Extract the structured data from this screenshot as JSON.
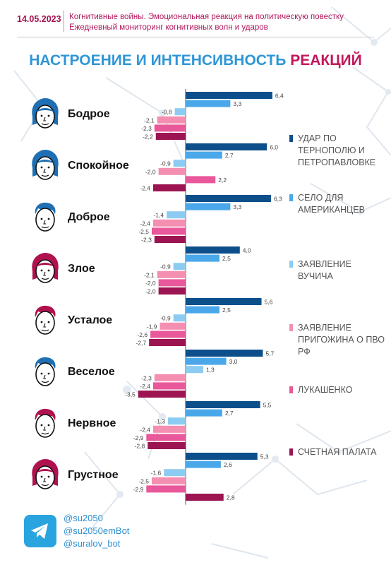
{
  "header": {
    "date": "14.05.2023",
    "line1": "Когнитивные войны. Эмоциональная реакция на политическую повестку",
    "line2": "Ежедневный мониторинг когнитивных волн и ударов"
  },
  "title": {
    "part1": "НАСТРОЕНИЕ И ИНТЕНСИВНОСТЬ",
    "part2": "РЕАКЦИЙ",
    "color1": "#2e96d6",
    "color2": "#c2185b"
  },
  "colors": {
    "udar": "#0d4f8b",
    "selo": "#4aa8ea",
    "vuchich": "#8ccbf2",
    "prigozhin": "#f48fb1",
    "lukashenko": "#e8589a",
    "palata": "#9c1452",
    "axis": "#555555",
    "face_blue": "#1e6fb3",
    "face_red": "#b0124f"
  },
  "chart_data": {
    "type": "bar",
    "orientation": "horizontal",
    "categories": [
      "Бодрое",
      "Спокойное",
      "Доброе",
      "Злое",
      "Усталое",
      "Веселое",
      "Нервное",
      "Грустное"
    ],
    "series": [
      {
        "name": "УДАР ПО ТЕРНОПОЛЮ И ПЕТРОПАВЛОВКЕ",
        "color": "#0d4f8b",
        "values": [
          6.4,
          6.0,
          6.3,
          4.0,
          5.6,
          5.7,
          5.5,
          5.3
        ]
      },
      {
        "name": "СЕЛО ДЛЯ АМЕРИКАНЦЕВ",
        "color": "#4aa8ea",
        "values": [
          3.3,
          2.7,
          3.3,
          2.5,
          2.5,
          3.0,
          2.7,
          2.6
        ]
      },
      {
        "name": "ЗАЯВЛЕНИЕ ВУЧИЧА",
        "color": "#8ccbf2",
        "values": [
          -0.8,
          -0.9,
          -1.4,
          -0.9,
          -0.9,
          1.3,
          -1.3,
          -1.6
        ]
      },
      {
        "name": "ЗАЯВЛЕНИЕ ПРИГОЖИНА О ПВО РФ",
        "color": "#f48fb1",
        "values": [
          -2.1,
          -2.0,
          -2.4,
          -2.1,
          -1.9,
          -2.3,
          -2.4,
          -2.5
        ]
      },
      {
        "name": "ЛУКАШЕНКО",
        "color": "#e8589a",
        "values": [
          -2.3,
          2.2,
          -2.5,
          -2.0,
          -2.6,
          -2.4,
          -2.9,
          -2.9
        ]
      },
      {
        "name": "СЧЕТНАЯ ПАЛАТА",
        "color": "#9c1452",
        "values": [
          -2.2,
          -2.4,
          -2.3,
          -2.0,
          -2.7,
          -3.5,
          -2.8,
          2.8
        ]
      }
    ],
    "value_labels": [
      [
        "6,4",
        "3,3",
        "-0,8",
        "-2,1",
        "-2,3",
        "-2,2"
      ],
      [
        "6,0",
        "2,7",
        "-0,9",
        "-2,0",
        "2,2",
        "-2,4"
      ],
      [
        "6,3",
        "3,3",
        "-1,4",
        "-2,4",
        "-2,5",
        "-2,3"
      ],
      [
        "4,0",
        "2,5",
        "-0,9",
        "-2,1",
        "-2,0",
        "-2,0"
      ],
      [
        "5,6",
        "2,5",
        "-0,9",
        "-1,9",
        "-2,6",
        "-2,7"
      ],
      [
        "5,7",
        "3,0",
        "1,3",
        "-2,3",
        "-2,4",
        "-3,5"
      ],
      [
        "5,5",
        "2,7",
        "-1,3",
        "-2,4",
        "-2,9",
        "-2,8"
      ],
      [
        "5,3",
        "2,6",
        "-1,6",
        "-2,5",
        "-2,9",
        "2,8"
      ]
    ],
    "legend_position": "right",
    "grid": false
  },
  "faces": [
    {
      "icon": "face-woman-cheerful-icon",
      "color": "blue"
    },
    {
      "icon": "face-woman-calm-icon",
      "color": "blue"
    },
    {
      "icon": "face-man-kind-icon",
      "color": "blue"
    },
    {
      "icon": "face-woman-angry-icon",
      "color": "red"
    },
    {
      "icon": "face-man-tired-icon",
      "color": "red"
    },
    {
      "icon": "face-man-happy-icon",
      "color": "blue"
    },
    {
      "icon": "face-man-nervous-icon",
      "color": "red"
    },
    {
      "icon": "face-woman-sad-icon",
      "color": "red"
    }
  ],
  "legend": {
    "items": [
      "УДАР ПО ТЕРНОПОЛЮ И ПЕТРОПАВЛОВКЕ",
      "СЕЛО ДЛЯ АМЕРИКАНЦЕВ",
      "ЗАЯВЛЕНИЕ ВУЧИЧА",
      "ЗАЯВЛЕНИЕ ПРИГОЖИНА О ПВО РФ",
      "ЛУКАШЕНКО",
      "СЧЕТНАЯ ПАЛАТА"
    ]
  },
  "footer": {
    "icon": "telegram-icon",
    "links": [
      "@su2050",
      "@su2050emBot",
      "@suralov_bot"
    ]
  }
}
